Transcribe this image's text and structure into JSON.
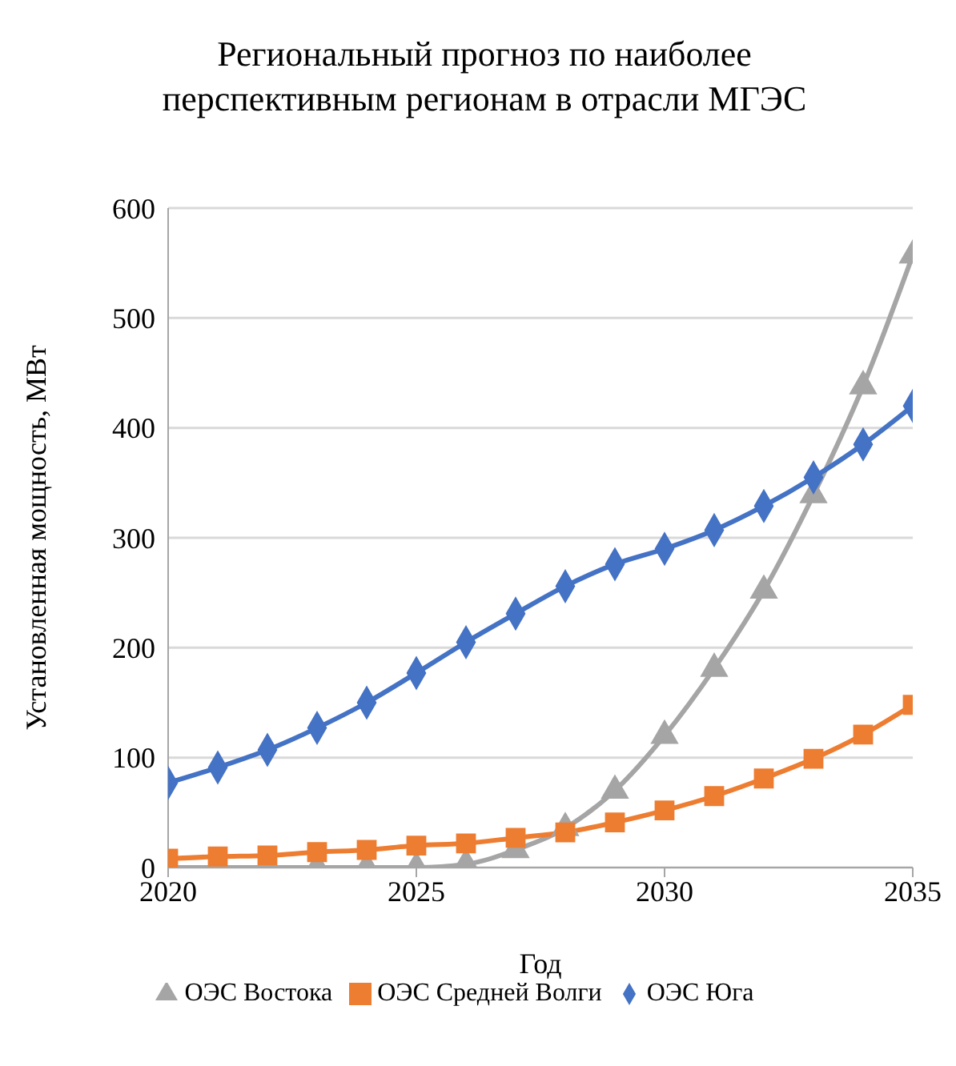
{
  "chart_data": {
    "type": "line",
    "title": "Региональный прогноз по наиболее перспективным регионам в отрасли МГЭС",
    "xlabel": "Год",
    "ylabel": "Установленная мощность, МВт",
    "x": [
      2020,
      2021,
      2022,
      2023,
      2024,
      2025,
      2026,
      2027,
      2028,
      2029,
      2030,
      2031,
      2032,
      2033,
      2034,
      2035
    ],
    "series": [
      {
        "name": "ОЭС Юга",
        "color": "#4472c4",
        "marker": "diamond",
        "values": [
          77,
          91,
          107,
          127,
          150,
          177,
          205,
          231,
          256,
          276,
          290,
          307,
          329,
          355,
          385,
          420
        ]
      },
      {
        "name": "ОЭС Средней Волги",
        "color": "#ed7d31",
        "marker": "square",
        "values": [
          8,
          10,
          11,
          14,
          16,
          20,
          22,
          27,
          32,
          41,
          52,
          65,
          81,
          99,
          121,
          148
        ]
      },
      {
        "name": "ОЭС Востока",
        "color": "#a5a5a5",
        "marker": "triangle",
        "values": [
          0,
          0,
          0,
          0,
          0,
          0,
          3,
          16,
          36,
          70,
          120,
          181,
          252,
          339,
          438,
          557
        ]
      }
    ],
    "xlim": [
      2020,
      2035
    ],
    "xticks": [
      2020,
      2025,
      2030,
      2035
    ],
    "ylim": [
      0,
      600
    ],
    "yticks": [
      0,
      100,
      200,
      300,
      400,
      500,
      600
    ],
    "grid": "y",
    "legend": "bottom",
    "line_style": "solid"
  }
}
